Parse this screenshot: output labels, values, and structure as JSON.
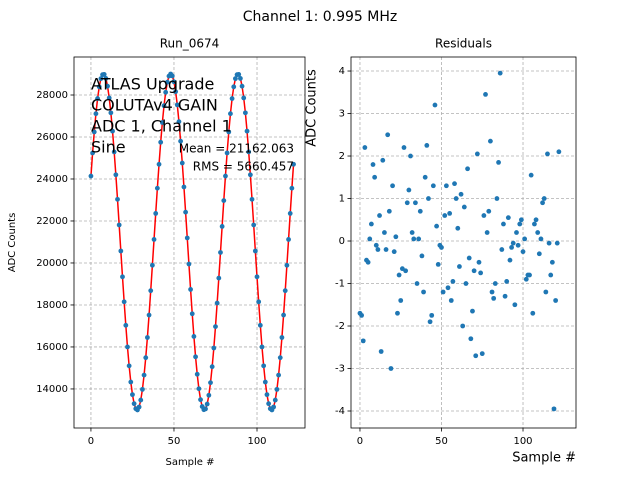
{
  "title": "Channel 1: 0.995 MHz",
  "chart_data": [
    {
      "type": "scatter",
      "title": "Run_0674",
      "xlabel": "Sample #",
      "ylabel": "ADC Counts",
      "x": [
        0,
        1,
        2,
        3,
        4,
        5,
        6,
        7,
        8,
        9,
        10,
        11,
        12,
        13,
        14,
        15,
        16,
        17,
        18,
        19,
        20,
        21,
        22,
        23,
        24,
        25,
        26,
        27,
        28,
        29,
        30,
        31,
        32,
        33,
        34,
        35,
        36,
        37,
        38,
        39,
        40,
        41,
        42,
        43,
        44,
        45,
        46,
        47,
        48,
        49,
        50,
        51,
        52,
        53,
        54,
        55,
        56,
        57,
        58,
        59,
        60,
        61,
        62,
        63,
        64,
        65,
        66,
        67,
        68,
        69,
        70,
        71,
        72,
        73,
        74,
        75,
        76,
        77,
        78,
        79,
        80,
        81,
        82,
        83,
        84,
        85,
        86,
        87,
        88,
        89,
        90,
        91,
        92,
        93,
        94,
        95,
        96,
        97,
        98,
        99,
        100,
        101,
        102,
        103,
        104,
        105,
        106,
        107,
        108,
        109,
        110,
        111,
        112,
        113,
        114,
        115,
        116,
        117,
        118,
        119,
        120,
        121,
        122
      ],
      "values": [
        24140,
        25240,
        26240,
        27110,
        27830,
        28390,
        28780,
        28970,
        28980,
        28790,
        28420,
        27860,
        27150,
        26280,
        25290,
        24200,
        23030,
        21810,
        20570,
        19340,
        18150,
        17030,
        16000,
        15100,
        14330,
        13730,
        13300,
        13060,
        13000,
        13140,
        13470,
        13980,
        14660,
        15490,
        16450,
        17520,
        18680,
        19890,
        21120,
        22360,
        23560,
        24700,
        25750,
        26690,
        27490,
        28130,
        28610,
        28900,
        29000,
        28910,
        28630,
        28160,
        27530,
        26730,
        25800,
        24760,
        23620,
        22420,
        21190,
        19950,
        18740,
        17580,
        16500,
        15530,
        14700,
        14010,
        13490,
        13160,
        13010,
        13050,
        13280,
        13700,
        14300,
        15060,
        15950,
        16970,
        18090,
        19280,
        20500,
        21740,
        22970,
        24140,
        25240,
        26240,
        27110,
        27830,
        28390,
        28780,
        28970,
        28980,
        28790,
        28420,
        27860,
        27150,
        26280,
        25290,
        24200,
        23030,
        21810,
        20570,
        19340,
        18150,
        17030,
        16000,
        15100,
        14330,
        13730,
        13300,
        13060,
        13000,
        13140,
        13470,
        13980,
        14660,
        15490,
        16450,
        17520,
        18680,
        19890,
        21120,
        22360,
        23560,
        24700
      ],
      "color": "#1f77b4",
      "line_color": "#ff0000",
      "xlim": [
        -10.2,
        128.9
      ],
      "ylim": [
        12140,
        29810
      ],
      "xticks": [
        0,
        50,
        100
      ],
      "yticks": [
        14000,
        16000,
        18000,
        20000,
        22000,
        24000,
        26000,
        28000
      ],
      "grid": true,
      "annotations": [
        "ATLAS Upgrade",
        "COLUTAv4 GAIN",
        "ADC 1, Channel 1",
        "Sine"
      ],
      "stats": [
        "Mean = 21162.063",
        "RMS = 5660.457"
      ]
    },
    {
      "type": "scatter",
      "title": "Residuals",
      "xlabel": "Sample #",
      "ylabel": "ADC Counts",
      "x": [
        0,
        1,
        2,
        3,
        4,
        5,
        6,
        7,
        8,
        9,
        10,
        11,
        12,
        13,
        14,
        15,
        16,
        17,
        18,
        19,
        20,
        21,
        22,
        23,
        24,
        25,
        26,
        27,
        28,
        29,
        30,
        31,
        32,
        33,
        34,
        35,
        36,
        37,
        38,
        39,
        40,
        41,
        42,
        43,
        44,
        45,
        46,
        47,
        48,
        49,
        50,
        51,
        52,
        53,
        54,
        55,
        56,
        57,
        58,
        59,
        60,
        61,
        62,
        63,
        64,
        65,
        66,
        67,
        68,
        69,
        70,
        71,
        72,
        73,
        74,
        75,
        76,
        77,
        78,
        79,
        80,
        81,
        82,
        83,
        84,
        85,
        86,
        87,
        88,
        89,
        90,
        91,
        92,
        93,
        94,
        95,
        96,
        97,
        98,
        99,
        100,
        101,
        102,
        103,
        104,
        105,
        106,
        107,
        108,
        109,
        110,
        111,
        112,
        113,
        114,
        115,
        116,
        117,
        118,
        119,
        120,
        121,
        122
      ],
      "values": [
        -1.7,
        -1.75,
        -2.35,
        2.2,
        -0.45,
        -0.5,
        0.05,
        0.4,
        1.8,
        1.5,
        -0.1,
        -0.2,
        0.6,
        -2.6,
        1.9,
        0.2,
        -0.2,
        2.5,
        0.7,
        -3.0,
        1.3,
        -0.25,
        0.1,
        -1.7,
        -0.8,
        -1.4,
        -0.65,
        2.2,
        -0.7,
        0.9,
        1.2,
        2.0,
        0.2,
        0.05,
        0.9,
        -1.0,
        0.05,
        0.7,
        -0.35,
        -1.2,
        1.5,
        2.25,
        1.0,
        -1.9,
        -1.75,
        1.3,
        3.2,
        0.35,
        -0.55,
        -0.1,
        -0.15,
        -1.2,
        0.6,
        1.3,
        -1.1,
        0.65,
        -1.4,
        -0.95,
        1.35,
        1.0,
        0.3,
        -0.6,
        1.1,
        -2.0,
        0.8,
        -1.0,
        1.7,
        -0.4,
        -2.3,
        -1.65,
        -0.7,
        -2.7,
        2.05,
        -0.5,
        -0.75,
        -2.65,
        0.6,
        3.45,
        0.2,
        0.7,
        2.35,
        -1.2,
        -1.35,
        -1.0,
        1.0,
        1.85,
        3.95,
        -0.2,
        0.4,
        -1.3,
        -0.95,
        0.55,
        -0.45,
        -0.15,
        -0.05,
        -1.5,
        0.2,
        -0.1,
        0.4,
        0.5,
        -0.25,
        0.05,
        -0.9,
        -0.8,
        -0.8,
        1.55,
        -1.7,
        0.4,
        0.5,
        0.2,
        -0.3,
        0.05,
        0.9,
        1.0,
        -1.2,
        2.05,
        -0.05,
        -0.8,
        -0.5,
        -3.95,
        -1.4,
        -0.05,
        2.1
      ],
      "color": "#1f77b4",
      "xlim": [
        -5.5,
        132.5
      ],
      "ylim": [
        -4.4,
        4.33
      ],
      "xticks": [
        0,
        50,
        100
      ],
      "yticks": [
        -4,
        -3,
        -2,
        -1,
        0,
        1,
        2,
        3,
        4
      ],
      "grid": true
    }
  ]
}
